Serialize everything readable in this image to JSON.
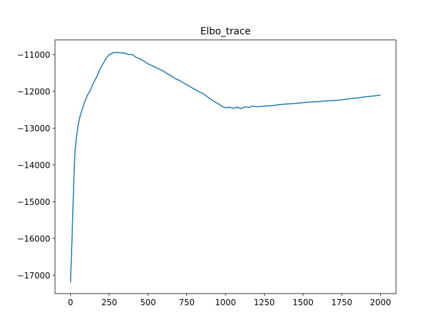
{
  "chart_data": {
    "type": "line",
    "title": "Elbo_trace",
    "xlabel": "",
    "ylabel": "",
    "xlim": [
      -100,
      2100
    ],
    "ylim": [
      -17500,
      -10600
    ],
    "grid": false,
    "legend": "none",
    "x_ticks": [
      0,
      250,
      500,
      750,
      1000,
      1250,
      1500,
      1750,
      2000
    ],
    "x_tick_labels": [
      "0",
      "250",
      "500",
      "750",
      "1000",
      "1250",
      "1500",
      "1750",
      "2000"
    ],
    "y_ticks": [
      -17000,
      -16000,
      -15000,
      -14000,
      -13000,
      -12000,
      -11000
    ],
    "y_tick_labels": [
      "−17000",
      "−16000",
      "−15000",
      "−14000",
      "−13000",
      "−12000",
      "−11000"
    ],
    "series": [
      {
        "color": "#1f77b4",
        "x": [
          0,
          5,
          10,
          15,
          20,
          25,
          30,
          40,
          50,
          60,
          75,
          90,
          110,
          130,
          150,
          170,
          190,
          210,
          230,
          250,
          275,
          300,
          325,
          350,
          375,
          400,
          425,
          450,
          475,
          500,
          525,
          550,
          575,
          600,
          625,
          650,
          675,
          700,
          725,
          750,
          775,
          800,
          825,
          850,
          875,
          900,
          925,
          950,
          975,
          1000,
          1025,
          1050,
          1075,
          1100,
          1125,
          1150,
          1175,
          1200,
          1250,
          1300,
          1350,
          1400,
          1450,
          1500,
          1550,
          1600,
          1650,
          1700,
          1750,
          1800,
          1850,
          1900,
          1950,
          2000
        ],
        "values": [
          -17200,
          -16600,
          -16000,
          -15300,
          -14600,
          -14000,
          -13600,
          -13200,
          -12900,
          -12700,
          -12500,
          -12300,
          -12100,
          -11950,
          -11750,
          -11600,
          -11400,
          -11250,
          -11100,
          -11000,
          -10950,
          -10940,
          -10950,
          -10960,
          -11000,
          -11000,
          -11080,
          -11120,
          -11180,
          -11250,
          -11300,
          -11350,
          -11400,
          -11450,
          -11520,
          -11580,
          -11650,
          -11700,
          -11760,
          -11820,
          -11880,
          -11940,
          -12000,
          -12050,
          -12120,
          -12200,
          -12270,
          -12330,
          -12400,
          -12450,
          -12430,
          -12460,
          -12430,
          -12470,
          -12420,
          -12440,
          -12400,
          -12420,
          -12400,
          -12390,
          -12360,
          -12340,
          -12330,
          -12310,
          -12290,
          -12280,
          -12260,
          -12250,
          -12230,
          -12200,
          -12180,
          -12150,
          -12130,
          -12100
        ]
      }
    ]
  }
}
